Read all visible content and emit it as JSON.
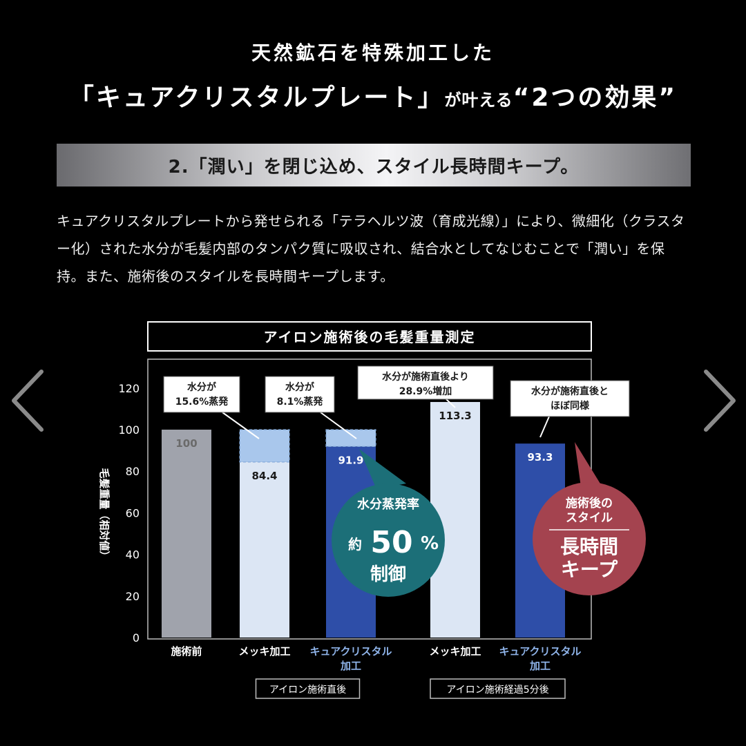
{
  "header": {
    "title_line1": "天然鉱石を特殊加工した",
    "title_line2_main": "「キュアクリスタルプレート」",
    "title_line2_small": "が叶える",
    "title_line2_tail": "“2つの効果”"
  },
  "subheading": "2.「潤い」を閉じ込め、スタイル長時間キープ。",
  "description": "キュアクリスタルプレートから発せられる「テラヘルツ波（育成光線）」により、微細化（クラスター化）された水分が毛髪内部のタンパク質に吸収され、結合水としてなじむことで「潤い」を保持。また、施術後のスタイルを長時間キープします。",
  "carousel": {
    "prev_icon": "chevron-left-icon",
    "next_icon": "chevron-right-icon"
  },
  "chart_data": {
    "type": "bar",
    "title": "アイロン施術後の毛髪重量測定",
    "ylabel": "毛髪重量（相対値）",
    "ylim": [
      0,
      130
    ],
    "yticks": [
      0,
      20,
      40,
      60,
      80,
      100,
      120
    ],
    "categories": [
      [
        "施術前"
      ],
      [
        "メッキ加工"
      ],
      [
        "キュアクリスタル",
        "加工"
      ],
      [
        "メッキ加工"
      ],
      [
        "キュアクリスタル",
        "加工"
      ]
    ],
    "values": [
      100,
      84.4,
      91.9,
      113.3,
      93.3
    ],
    "value_labels": [
      "100",
      "84.4",
      "91.9",
      "113.3",
      "93.3"
    ],
    "evaporated_ghost_top": [
      null,
      100,
      100,
      null,
      null
    ],
    "bar_colors": [
      "#a0a3ac",
      "#dce6f4",
      "#2e4ea8",
      "#dce6f4",
      "#2e4ea8"
    ],
    "ghost_color": "#a9c7ec",
    "label_colors": [
      "#6a6a6a",
      "#1a1a1a",
      "#ffffff",
      "#1a1a1a",
      "#ffffff"
    ],
    "category_colors": [
      "#ffffff",
      "#ffffff",
      "#8fb4ea",
      "#ffffff",
      "#8fb4ea"
    ],
    "groups": [
      {
        "label": "アイロン施術直後",
        "bars": [
          1,
          2
        ]
      },
      {
        "label": "アイロン施術経過5分後",
        "bars": [
          3,
          4
        ]
      }
    ],
    "callouts": [
      {
        "bar": 1,
        "lines": [
          "水分が",
          "15.6%蒸発"
        ]
      },
      {
        "bar": 2,
        "lines": [
          "水分が",
          "8.1%蒸発"
        ]
      },
      {
        "bar": 3,
        "lines": [
          "水分が施術直後より",
          "28.9%増加"
        ]
      },
      {
        "bar": 4,
        "lines": [
          "水分が施術直後と",
          "ほぼ同様"
        ]
      }
    ],
    "badges": [
      {
        "lines": [
          "水分蒸発率",
          "約",
          "50",
          "%",
          "制御"
        ],
        "color": "#1c6f78"
      },
      {
        "lines": [
          "施術後の",
          "スタイル",
          "長時間",
          "キープ"
        ],
        "color": "#a4434f"
      }
    ]
  }
}
